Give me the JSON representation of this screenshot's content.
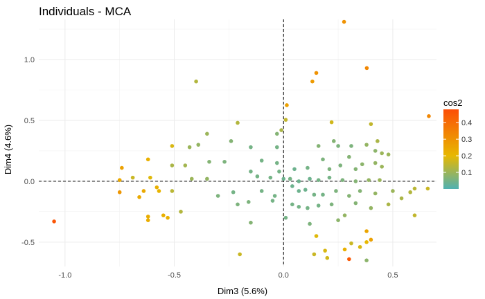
{
  "chart_data": {
    "type": "scatter",
    "title": "Individuals - MCA",
    "xlabel": "Dim3 (5.6%)",
    "ylabel": "Dim4 (4.6%)",
    "xlim": [
      -1.12,
      0.7
    ],
    "ylim": [
      -0.7,
      1.33
    ],
    "x_ticks": [
      -1.0,
      -0.5,
      0.0,
      0.5
    ],
    "x_tick_labels": [
      "-1.0",
      "-0.5",
      "0.0",
      "0.5"
    ],
    "y_ticks": [
      -0.5,
      0.0,
      0.5,
      1.0
    ],
    "y_tick_labels": [
      "-0.5",
      "0.0",
      "0.5",
      "1.0"
    ],
    "grid": true,
    "reference_lines": {
      "x": 0,
      "y": 0,
      "style": "dashed"
    },
    "legend": {
      "title": "cos2",
      "position": "right",
      "range": [
        0.0,
        0.48
      ],
      "ticks": [
        0.1,
        0.2,
        0.3,
        0.4
      ],
      "tick_labels": [
        "0.1",
        "0.2",
        "0.3",
        "0.4"
      ],
      "colors": [
        "#4fb1b2",
        "#e7b800",
        "#fc4e07"
      ]
    },
    "points": [
      {
        "x": 0.277,
        "y": 1.31,
        "cos2": 0.3
      },
      {
        "x": 0.381,
        "y": 0.93,
        "cos2": 0.33
      },
      {
        "x": 0.15,
        "y": 0.89,
        "cos2": 0.3
      },
      {
        "x": 0.132,
        "y": 0.82,
        "cos2": 0.28
      },
      {
        "x": -0.4,
        "y": 0.82,
        "cos2": 0.13
      },
      {
        "x": 0.015,
        "y": 0.625,
        "cos2": 0.26
      },
      {
        "x": 0.665,
        "y": 0.535,
        "cos2": 0.33
      },
      {
        "x": 0.01,
        "y": 0.505,
        "cos2": 0.15
      },
      {
        "x": 0.22,
        "y": 0.485,
        "cos2": 0.17
      },
      {
        "x": 0.4,
        "y": 0.47,
        "cos2": 0.15
      },
      {
        "x": -0.21,
        "y": 0.48,
        "cos2": 0.13
      },
      {
        "x": -0.01,
        "y": 0.42,
        "cos2": 0.12
      },
      {
        "x": -0.03,
        "y": 0.39,
        "cos2": 0.07
      },
      {
        "x": -0.35,
        "y": 0.39,
        "cos2": 0.1
      },
      {
        "x": -0.51,
        "y": 0.29,
        "cos2": 0.18
      },
      {
        "x": -0.43,
        "y": 0.28,
        "cos2": 0.1
      },
      {
        "x": -0.39,
        "y": 0.3,
        "cos2": 0.09
      },
      {
        "x": -0.24,
        "y": 0.33,
        "cos2": 0.07
      },
      {
        "x": -0.15,
        "y": 0.28,
        "cos2": 0.05
      },
      {
        "x": -0.03,
        "y": 0.28,
        "cos2": 0.05
      },
      {
        "x": 0.16,
        "y": 0.29,
        "cos2": 0.07
      },
      {
        "x": 0.23,
        "y": 0.33,
        "cos2": 0.07
      },
      {
        "x": 0.25,
        "y": 0.29,
        "cos2": 0.06
      },
      {
        "x": 0.31,
        "y": 0.29,
        "cos2": 0.06
      },
      {
        "x": 0.38,
        "y": 0.3,
        "cos2": 0.09
      },
      {
        "x": 0.43,
        "y": 0.33,
        "cos2": 0.12
      },
      {
        "x": 0.45,
        "y": 0.23,
        "cos2": 0.1
      },
      {
        "x": 0.48,
        "y": 0.22,
        "cos2": 0.1
      },
      {
        "x": 0.42,
        "y": 0.25,
        "cos2": 0.08
      },
      {
        "x": -0.62,
        "y": 0.18,
        "cos2": 0.22
      },
      {
        "x": -0.74,
        "y": 0.11,
        "cos2": 0.26
      },
      {
        "x": -0.51,
        "y": 0.13,
        "cos2": 0.12
      },
      {
        "x": -0.45,
        "y": 0.13,
        "cos2": 0.11
      },
      {
        "x": -0.34,
        "y": 0.16,
        "cos2": 0.07
      },
      {
        "x": -0.27,
        "y": 0.16,
        "cos2": 0.06
      },
      {
        "x": -0.1,
        "y": 0.17,
        "cos2": 0.05
      },
      {
        "x": -0.03,
        "y": 0.15,
        "cos2": 0.05
      },
      {
        "x": 0.05,
        "y": 0.1,
        "cos2": 0.04
      },
      {
        "x": 0.11,
        "y": 0.11,
        "cos2": 0.05
      },
      {
        "x": 0.18,
        "y": 0.18,
        "cos2": 0.06
      },
      {
        "x": 0.21,
        "y": 0.1,
        "cos2": 0.06
      },
      {
        "x": 0.26,
        "y": 0.13,
        "cos2": 0.06
      },
      {
        "x": 0.3,
        "y": 0.2,
        "cos2": 0.07
      },
      {
        "x": 0.33,
        "y": 0.1,
        "cos2": 0.07
      },
      {
        "x": 0.36,
        "y": 0.14,
        "cos2": 0.08
      },
      {
        "x": 0.42,
        "y": 0.15,
        "cos2": 0.09
      },
      {
        "x": 0.45,
        "y": 0.12,
        "cos2": 0.1
      },
      {
        "x": -0.15,
        "y": 0.08,
        "cos2": 0.05
      },
      {
        "x": -0.02,
        "y": 0.08,
        "cos2": 0.05
      },
      {
        "x": -0.75,
        "y": 0.01,
        "cos2": 0.24
      },
      {
        "x": -0.69,
        "y": 0.03,
        "cos2": 0.16
      },
      {
        "x": -0.61,
        "y": 0.03,
        "cos2": 0.19
      },
      {
        "x": -0.42,
        "y": 0.02,
        "cos2": 0.1
      },
      {
        "x": -0.35,
        "y": 0.02,
        "cos2": 0.09
      },
      {
        "x": -0.12,
        "y": 0.04,
        "cos2": 0.05
      },
      {
        "x": -0.06,
        "y": 0.03,
        "cos2": 0.05
      },
      {
        "x": 0.0,
        "y": 0.02,
        "cos2": 0.04
      },
      {
        "x": 0.03,
        "y": 0.02,
        "cos2": 0.05
      },
      {
        "x": 0.07,
        "y": 0.0,
        "cos2": 0.04
      },
      {
        "x": 0.12,
        "y": 0.02,
        "cos2": 0.04
      },
      {
        "x": 0.16,
        "y": 0.01,
        "cos2": 0.05
      },
      {
        "x": 0.21,
        "y": 0.03,
        "cos2": 0.05
      },
      {
        "x": 0.27,
        "y": 0.01,
        "cos2": 0.06
      },
      {
        "x": 0.33,
        "y": 0.0,
        "cos2": 0.07
      },
      {
        "x": 0.39,
        "y": 0.01,
        "cos2": 0.09
      },
      {
        "x": 0.44,
        "y": 0.01,
        "cos2": 0.1
      },
      {
        "x": -0.75,
        "y": -0.09,
        "cos2": 0.29
      },
      {
        "x": -0.64,
        "y": -0.08,
        "cos2": 0.24
      },
      {
        "x": -0.57,
        "y": -0.08,
        "cos2": 0.21
      },
      {
        "x": -0.51,
        "y": -0.08,
        "cos2": 0.14
      },
      {
        "x": -0.66,
        "y": -0.13,
        "cos2": 0.24
      },
      {
        "x": -0.58,
        "y": -0.05,
        "cos2": 0.22
      },
      {
        "x": -0.3,
        "y": -0.12,
        "cos2": 0.06
      },
      {
        "x": -0.23,
        "y": -0.09,
        "cos2": 0.05
      },
      {
        "x": -0.1,
        "y": -0.08,
        "cos2": 0.05
      },
      {
        "x": -0.04,
        "y": -0.12,
        "cos2": 0.05
      },
      {
        "x": 0.04,
        "y": -0.04,
        "cos2": 0.04
      },
      {
        "x": 0.07,
        "y": -0.08,
        "cos2": 0.04
      },
      {
        "x": 0.1,
        "y": -0.07,
        "cos2": 0.04
      },
      {
        "x": 0.14,
        "y": -0.11,
        "cos2": 0.05
      },
      {
        "x": 0.18,
        "y": -0.11,
        "cos2": 0.05
      },
      {
        "x": 0.24,
        "y": -0.08,
        "cos2": 0.06
      },
      {
        "x": 0.3,
        "y": -0.12,
        "cos2": 0.07
      },
      {
        "x": 0.35,
        "y": -0.08,
        "cos2": 0.07
      },
      {
        "x": 0.42,
        "y": -0.1,
        "cos2": 0.09
      },
      {
        "x": 0.5,
        "y": -0.08,
        "cos2": 0.1
      },
      {
        "x": 0.58,
        "y": -0.09,
        "cos2": 0.13
      },
      {
        "x": 0.6,
        "y": -0.06,
        "cos2": 0.14
      },
      {
        "x": 0.66,
        "y": -0.06,
        "cos2": 0.16
      },
      {
        "x": -0.62,
        "y": -0.29,
        "cos2": 0.23
      },
      {
        "x": -0.62,
        "y": -0.32,
        "cos2": 0.23
      },
      {
        "x": -0.55,
        "y": -0.28,
        "cos2": 0.22
      },
      {
        "x": -0.53,
        "y": -0.3,
        "cos2": 0.22
      },
      {
        "x": -0.47,
        "y": -0.25,
        "cos2": 0.13
      },
      {
        "x": -0.21,
        "y": -0.19,
        "cos2": 0.06
      },
      {
        "x": -0.16,
        "y": -0.17,
        "cos2": 0.06
      },
      {
        "x": -0.05,
        "y": -0.16,
        "cos2": 0.05
      },
      {
        "x": 0.04,
        "y": -0.19,
        "cos2": 0.05
      },
      {
        "x": 0.07,
        "y": -0.21,
        "cos2": 0.05
      },
      {
        "x": 0.11,
        "y": -0.22,
        "cos2": 0.05
      },
      {
        "x": 0.16,
        "y": -0.2,
        "cos2": 0.05
      },
      {
        "x": 0.22,
        "y": -0.19,
        "cos2": 0.06
      },
      {
        "x": 0.33,
        "y": -0.18,
        "cos2": 0.07
      },
      {
        "x": 0.4,
        "y": -0.22,
        "cos2": 0.09
      },
      {
        "x": 0.48,
        "y": -0.19,
        "cos2": 0.12
      },
      {
        "x": 0.54,
        "y": -0.14,
        "cos2": 0.12
      },
      {
        "x": 0.6,
        "y": -0.28,
        "cos2": 0.15
      },
      {
        "x": -1.05,
        "y": -0.33,
        "cos2": 0.46
      },
      {
        "x": -0.15,
        "y": -0.34,
        "cos2": 0.07
      },
      {
        "x": 0.01,
        "y": -0.3,
        "cos2": 0.05
      },
      {
        "x": 0.12,
        "y": -0.35,
        "cos2": 0.06
      },
      {
        "x": 0.28,
        "y": -0.28,
        "cos2": 0.09
      },
      {
        "x": 0.25,
        "y": -0.32,
        "cos2": 0.08
      },
      {
        "x": 0.38,
        "y": -0.41,
        "cos2": 0.25
      },
      {
        "x": 0.15,
        "y": -0.45,
        "cos2": 0.19
      },
      {
        "x": 0.31,
        "y": -0.51,
        "cos2": 0.16
      },
      {
        "x": 0.4,
        "y": -0.48,
        "cos2": 0.26
      },
      {
        "x": 0.38,
        "y": -0.5,
        "cos2": 0.2
      },
      {
        "x": 0.19,
        "y": -0.57,
        "cos2": 0.18
      },
      {
        "x": 0.28,
        "y": -0.56,
        "cos2": 0.22
      },
      {
        "x": 0.35,
        "y": -0.54,
        "cos2": 0.18
      },
      {
        "x": -0.2,
        "y": -0.6,
        "cos2": 0.16
      },
      {
        "x": 0.14,
        "y": -0.6,
        "cos2": 0.16
      },
      {
        "x": 0.2,
        "y": -0.63,
        "cos2": 0.17
      },
      {
        "x": 0.3,
        "y": -0.64,
        "cos2": 0.45
      },
      {
        "x": 0.38,
        "y": -0.65,
        "cos2": 0.08
      }
    ]
  }
}
